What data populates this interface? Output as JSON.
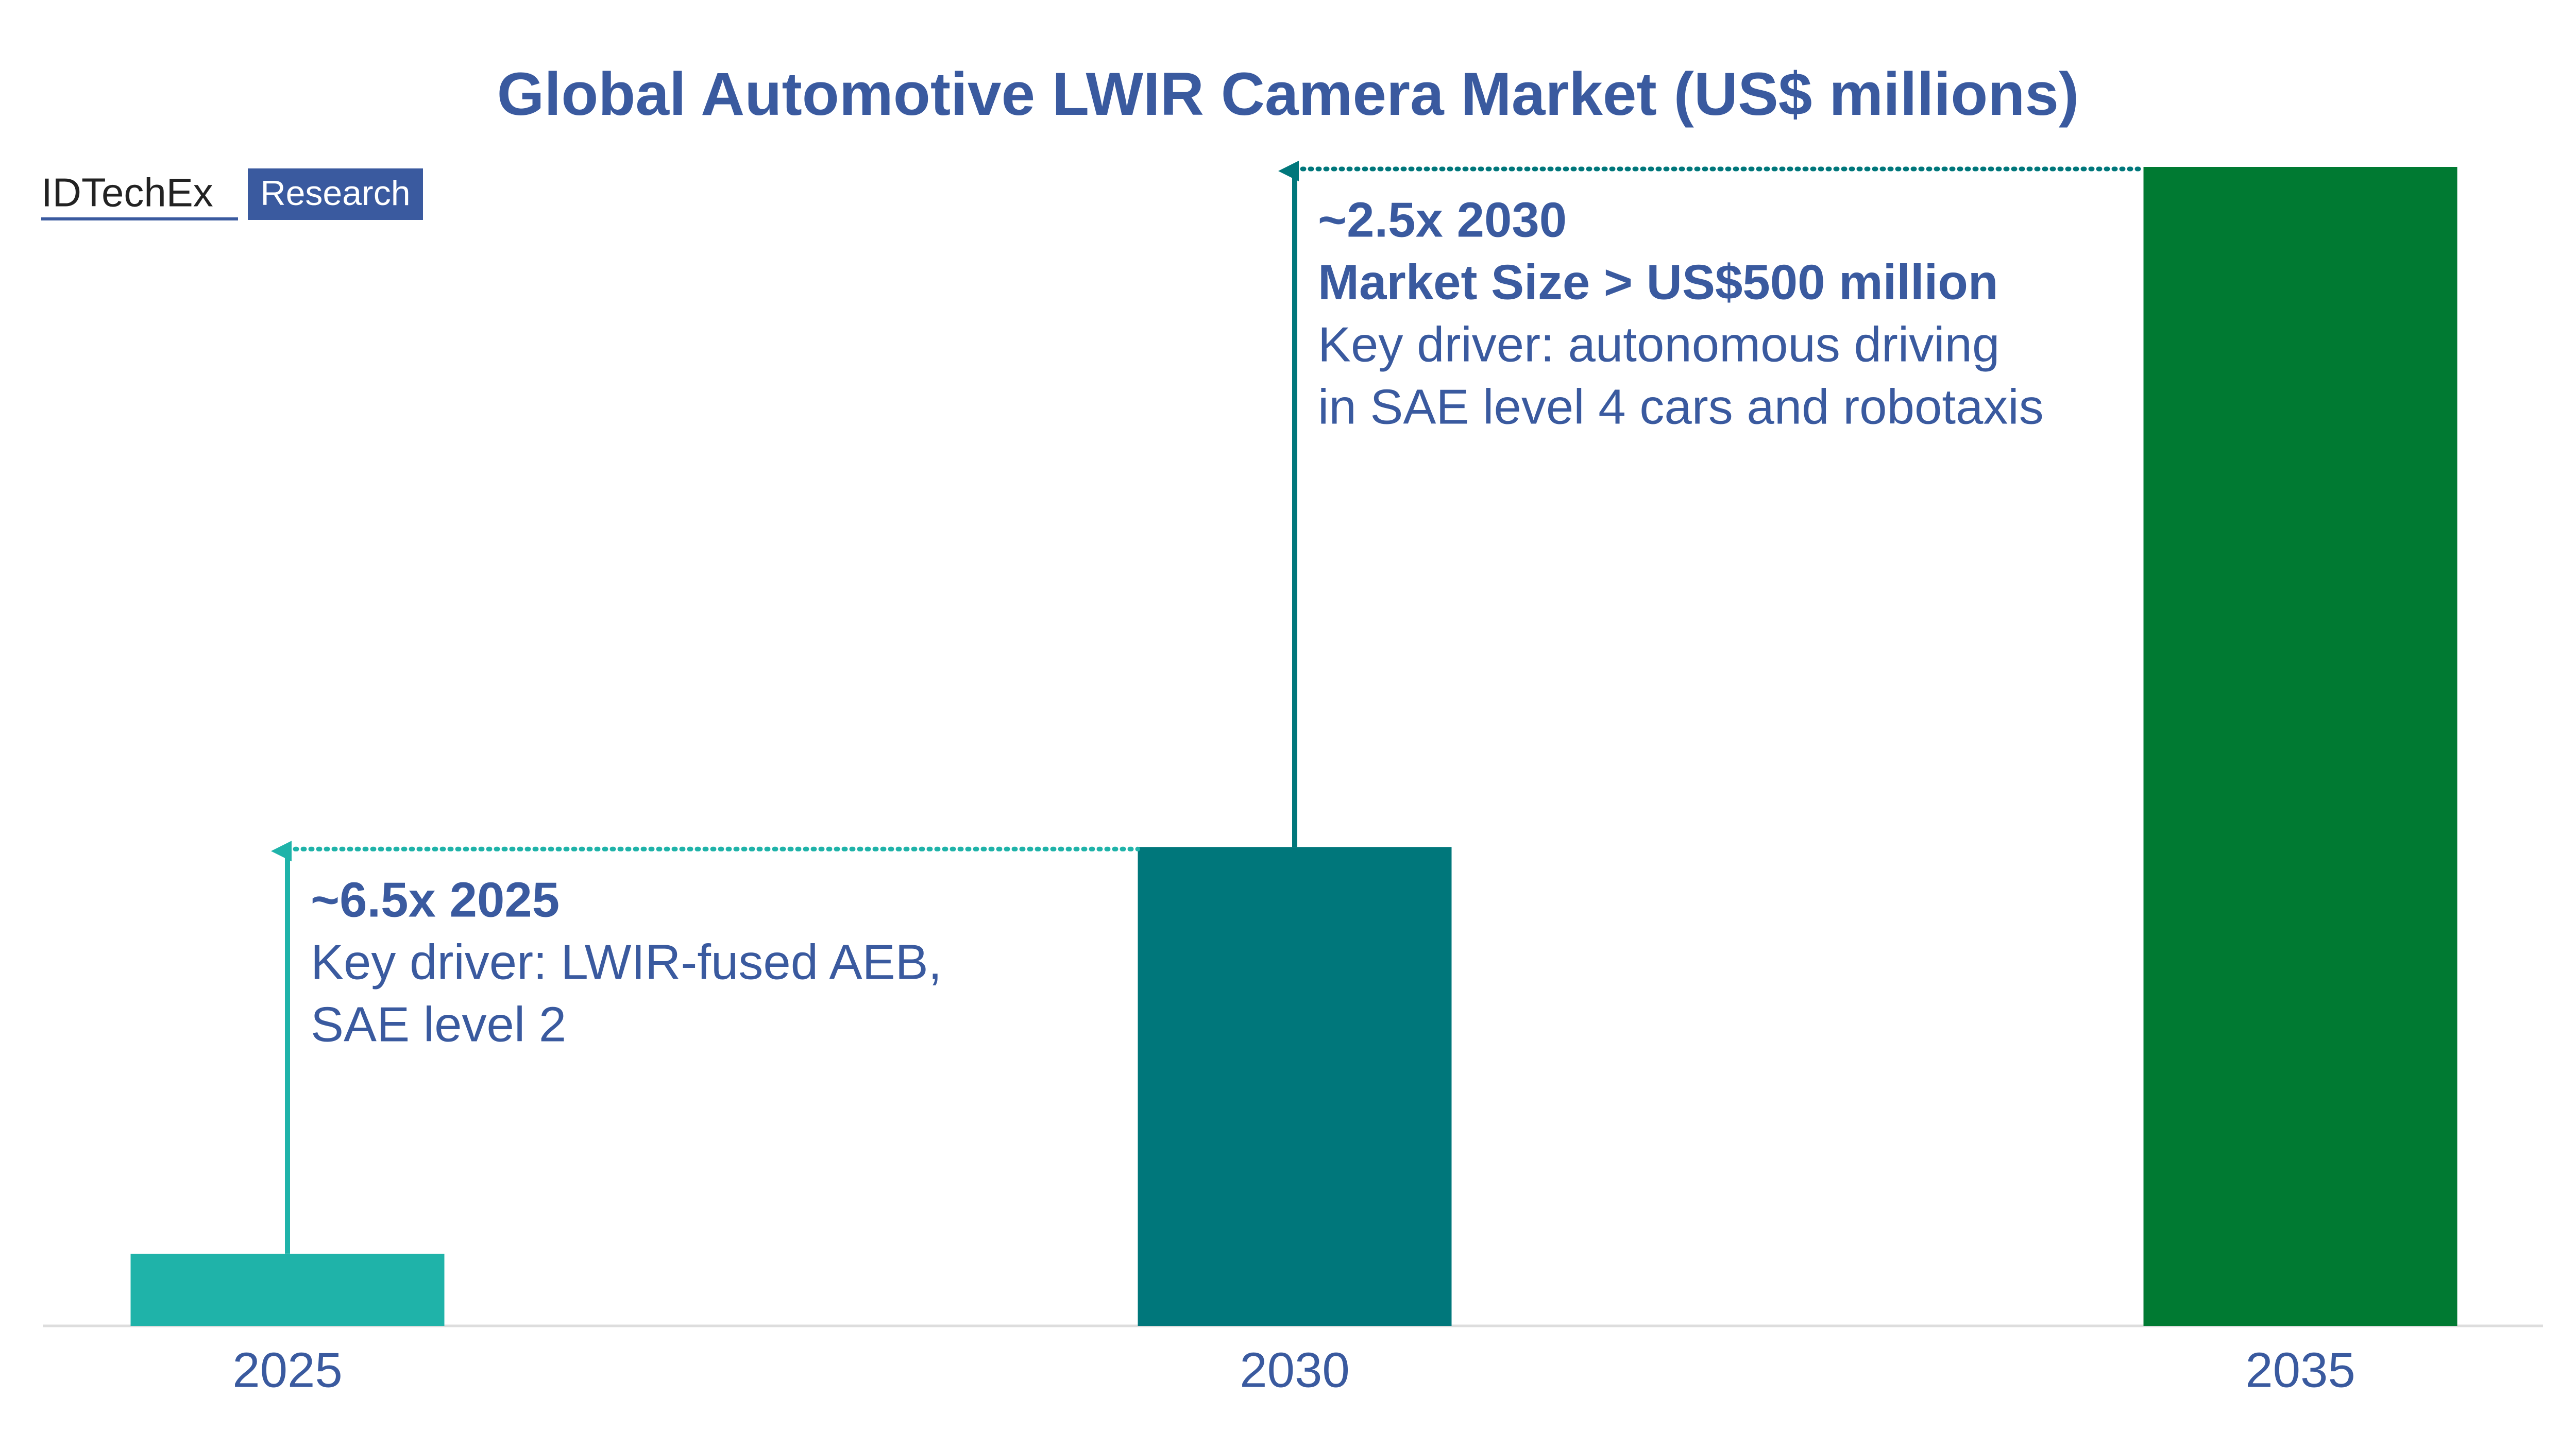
{
  "chart_data": {
    "type": "bar",
    "title": "Global Automotive LWIR Camera Market (US$ millions)",
    "logo": {
      "name": "IDTechEx",
      "tag": "Research"
    },
    "categories": [
      "2025",
      "2030",
      "2035"
    ],
    "values": [
      33,
      219,
      530
    ],
    "colors": [
      "#1fb3a9",
      "#00777b",
      "#007a32"
    ],
    "annotations": [
      {
        "headline": [
          "~6.5x 2025"
        ],
        "body": [
          "Key driver: LWIR-fused AEB,",
          "SAE level 2"
        ]
      },
      {
        "headline": [
          "~2.5x 2030",
          "Market Size > US$500 million"
        ],
        "body": [
          "Key driver: autonomous driving",
          "in SAE level 4 cars and robotaxis"
        ]
      }
    ]
  }
}
